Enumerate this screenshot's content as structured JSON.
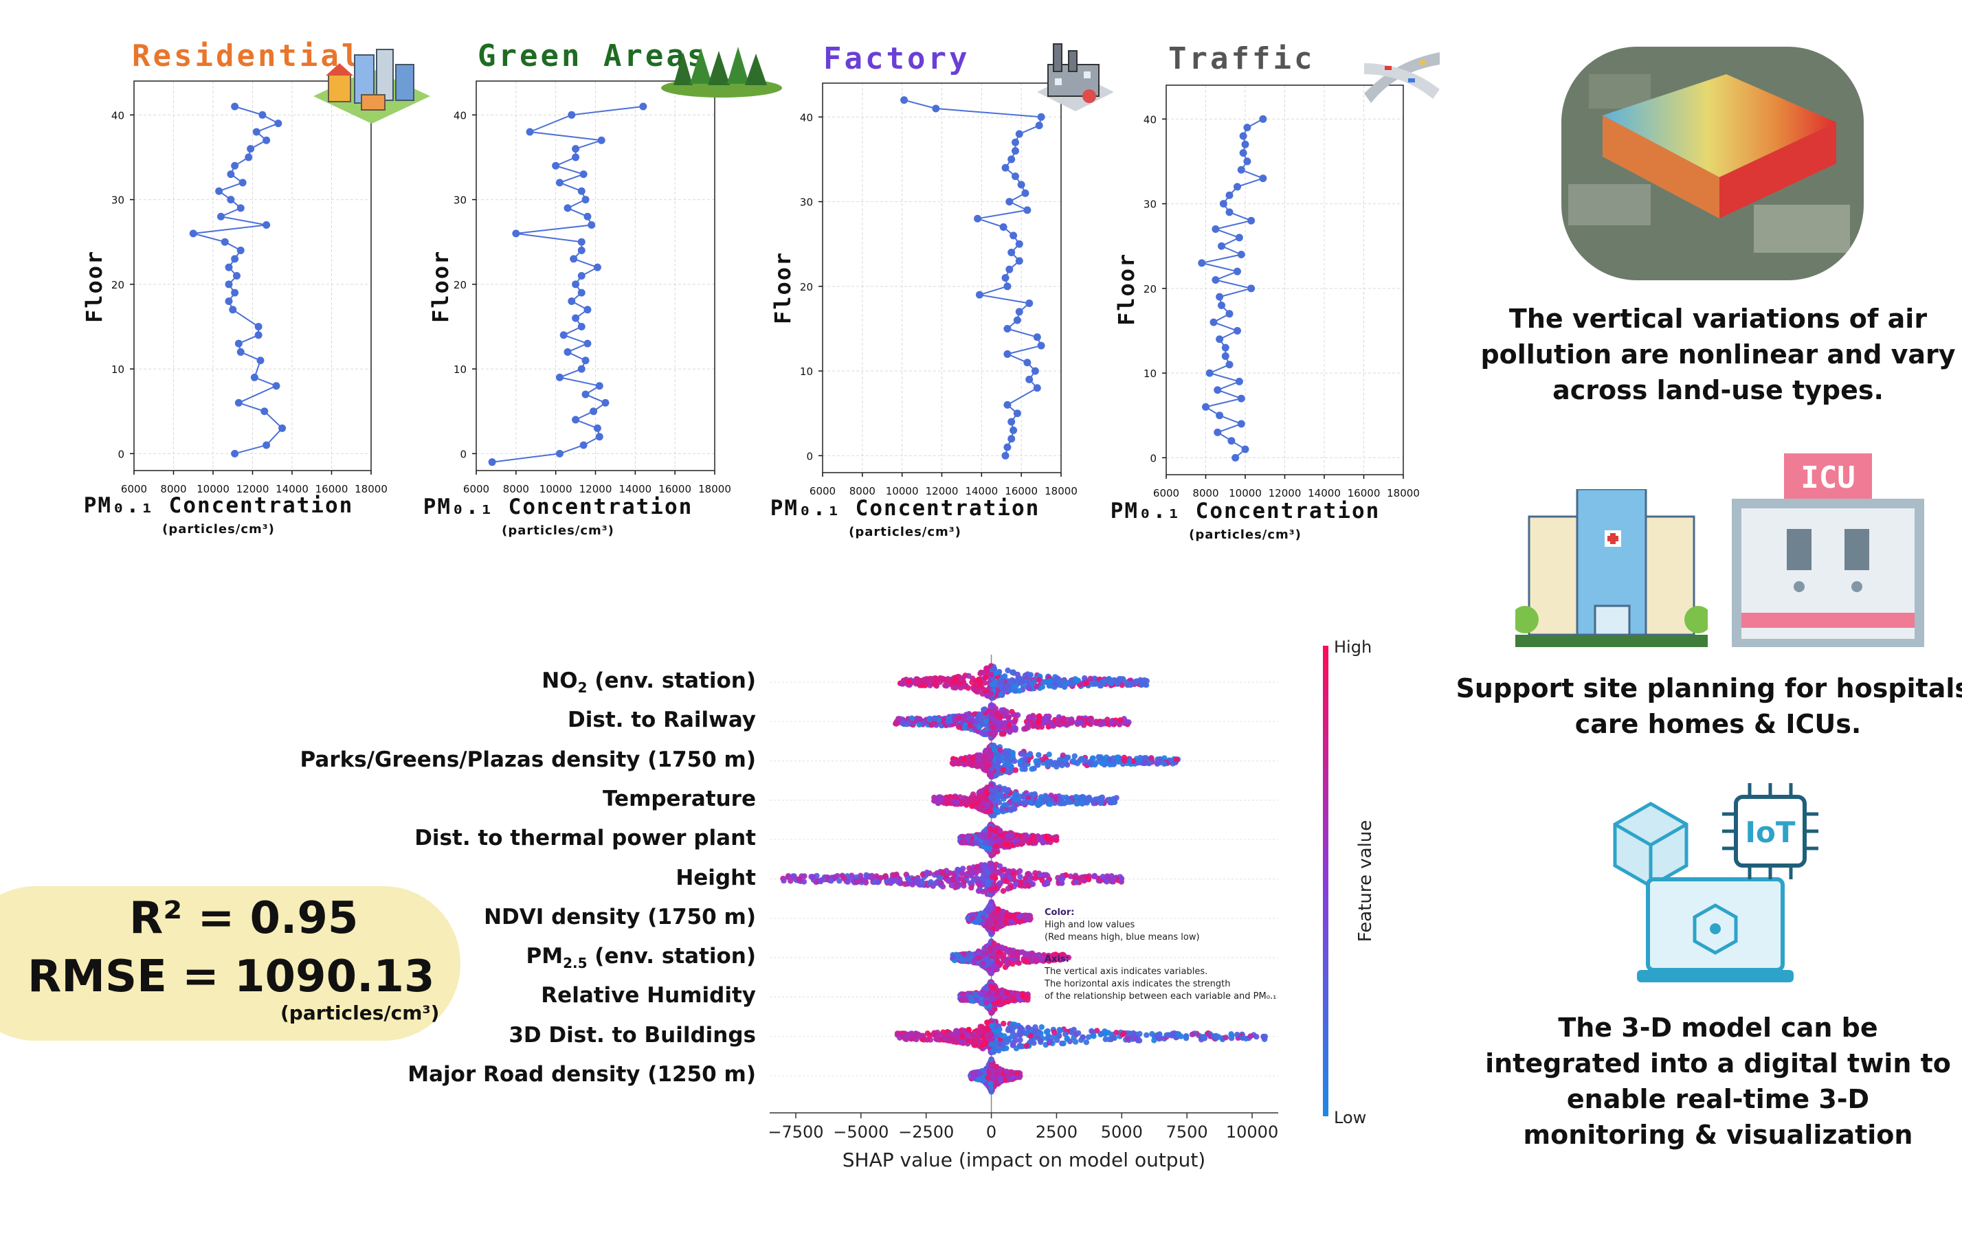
{
  "chart_data": [
    {
      "type": "line",
      "title": "Residential",
      "xlabel": "PM₀.₁ Concentration",
      "xlabel_unit": "(particles/cm³)",
      "ylabel": "Floor",
      "xlim": [
        6000,
        18000
      ],
      "ylim": [
        -2,
        44
      ],
      "xticks": [
        "6000",
        "8000",
        "10000",
        "12000",
        "14000",
        "16000",
        "18000"
      ],
      "yticks": [
        "0",
        "10",
        "20",
        "30",
        "40"
      ],
      "color": "#4a6fd8",
      "points": [
        [
          11100,
          0
        ],
        [
          12700,
          1
        ],
        [
          13500,
          3
        ],
        [
          12600,
          5
        ],
        [
          11300,
          6
        ],
        [
          13200,
          8
        ],
        [
          12100,
          9
        ],
        [
          12400,
          11
        ],
        [
          11400,
          12
        ],
        [
          11300,
          13
        ],
        [
          12300,
          14
        ],
        [
          12300,
          15
        ],
        [
          11000,
          17
        ],
        [
          10800,
          18
        ],
        [
          11100,
          19
        ],
        [
          10800,
          20
        ],
        [
          11200,
          21
        ],
        [
          10800,
          22
        ],
        [
          11100,
          23
        ],
        [
          11400,
          24
        ],
        [
          10600,
          25
        ],
        [
          9000,
          26
        ],
        [
          12700,
          27
        ],
        [
          10400,
          28
        ],
        [
          11400,
          29
        ],
        [
          10900,
          30
        ],
        [
          10300,
          31
        ],
        [
          11500,
          32
        ],
        [
          10900,
          33
        ],
        [
          11100,
          34
        ],
        [
          11800,
          35
        ],
        [
          11900,
          36
        ],
        [
          12700,
          37
        ],
        [
          12200,
          38
        ],
        [
          13300,
          39
        ],
        [
          12500,
          40
        ],
        [
          11100,
          41
        ]
      ]
    },
    {
      "type": "line",
      "title": "Green Areas",
      "xlabel": "PM₀.₁ Concentration",
      "xlabel_unit": "(particles/cm³)",
      "ylabel": "Floor",
      "xlim": [
        6000,
        18000
      ],
      "ylim": [
        -2,
        44
      ],
      "xticks": [
        "6000",
        "8000",
        "10000",
        "12000",
        "14000",
        "16000",
        "18000"
      ],
      "yticks": [
        "0",
        "10",
        "20",
        "30",
        "40"
      ],
      "color": "#4a6fd8",
      "points": [
        [
          6800,
          -1
        ],
        [
          10200,
          0
        ],
        [
          11400,
          1
        ],
        [
          12200,
          2
        ],
        [
          12100,
          3
        ],
        [
          11000,
          4
        ],
        [
          11900,
          5
        ],
        [
          12500,
          6
        ],
        [
          11500,
          7
        ],
        [
          12200,
          8
        ],
        [
          10200,
          9
        ],
        [
          11300,
          10
        ],
        [
          11500,
          11
        ],
        [
          10600,
          12
        ],
        [
          11600,
          13
        ],
        [
          10400,
          14
        ],
        [
          11300,
          15
        ],
        [
          11000,
          16
        ],
        [
          11600,
          17
        ],
        [
          10800,
          18
        ],
        [
          11300,
          19
        ],
        [
          11000,
          20
        ],
        [
          11300,
          21
        ],
        [
          12100,
          22
        ],
        [
          10900,
          23
        ],
        [
          11300,
          24
        ],
        [
          11300,
          25
        ],
        [
          8000,
          26
        ],
        [
          11800,
          27
        ],
        [
          11600,
          28
        ],
        [
          10600,
          29
        ],
        [
          11500,
          30
        ],
        [
          11300,
          31
        ],
        [
          10200,
          32
        ],
        [
          11400,
          33
        ],
        [
          10000,
          34
        ],
        [
          11000,
          35
        ],
        [
          11000,
          36
        ],
        [
          12300,
          37
        ],
        [
          8700,
          38
        ],
        [
          10800,
          40
        ],
        [
          14400,
          41
        ]
      ]
    },
    {
      "type": "line",
      "title": "Factory",
      "xlabel": "PM₀.₁ Concentration",
      "xlabel_unit": "(particles/cm³)",
      "ylabel": "Floor",
      "xlim": [
        6000,
        18000
      ],
      "ylim": [
        -2,
        44
      ],
      "xticks": [
        "6000",
        "8000",
        "10000",
        "12000",
        "14000",
        "16000",
        "18000"
      ],
      "yticks": [
        "0",
        "10",
        "20",
        "30",
        "40"
      ],
      "color": "#4a6fd8",
      "points": [
        [
          15200,
          0
        ],
        [
          15300,
          1
        ],
        [
          15500,
          2
        ],
        [
          15600,
          3
        ],
        [
          15500,
          4
        ],
        [
          15800,
          5
        ],
        [
          15300,
          6
        ],
        [
          16800,
          8
        ],
        [
          16400,
          9
        ],
        [
          16700,
          10
        ],
        [
          16300,
          11
        ],
        [
          15300,
          12
        ],
        [
          17000,
          13
        ],
        [
          16800,
          14
        ],
        [
          15300,
          15
        ],
        [
          15800,
          16
        ],
        [
          15900,
          17
        ],
        [
          16400,
          18
        ],
        [
          13900,
          19
        ],
        [
          15300,
          20
        ],
        [
          15200,
          21
        ],
        [
          15400,
          22
        ],
        [
          15900,
          23
        ],
        [
          15500,
          24
        ],
        [
          15900,
          25
        ],
        [
          15600,
          26
        ],
        [
          15100,
          27
        ],
        [
          13800,
          28
        ],
        [
          16300,
          29
        ],
        [
          15400,
          30
        ],
        [
          16200,
          31
        ],
        [
          16000,
          32
        ],
        [
          15700,
          33
        ],
        [
          15200,
          34
        ],
        [
          15500,
          35
        ],
        [
          15700,
          36
        ],
        [
          15700,
          37
        ],
        [
          15900,
          38
        ],
        [
          16900,
          39
        ],
        [
          17000,
          40
        ],
        [
          11700,
          41
        ],
        [
          10100,
          42
        ]
      ]
    },
    {
      "type": "line",
      "title": "Traffic",
      "xlabel": "PM₀.₁ Concentration",
      "xlabel_unit": "(particles/cm³)",
      "ylabel": "Floor",
      "xlim": [
        6000,
        18000
      ],
      "ylim": [
        -2,
        44
      ],
      "xticks": [
        "6000",
        "8000",
        "10000",
        "12000",
        "14000",
        "16000",
        "18000"
      ],
      "yticks": [
        "0",
        "10",
        "20",
        "30",
        "40"
      ],
      "color": "#4a6fd8",
      "points": [
        [
          9500,
          0
        ],
        [
          10000,
          1
        ],
        [
          9300,
          2
        ],
        [
          8600,
          3
        ],
        [
          9800,
          4
        ],
        [
          8700,
          5
        ],
        [
          8000,
          6
        ],
        [
          9800,
          7
        ],
        [
          8600,
          8
        ],
        [
          9700,
          9
        ],
        [
          8200,
          10
        ],
        [
          9200,
          11
        ],
        [
          9000,
          12
        ],
        [
          9000,
          13
        ],
        [
          8700,
          14
        ],
        [
          9600,
          15
        ],
        [
          8400,
          16
        ],
        [
          9200,
          17
        ],
        [
          8800,
          18
        ],
        [
          8700,
          19
        ],
        [
          10300,
          20
        ],
        [
          8500,
          21
        ],
        [
          9600,
          22
        ],
        [
          7800,
          23
        ],
        [
          9800,
          24
        ],
        [
          8800,
          25
        ],
        [
          9700,
          26
        ],
        [
          8500,
          27
        ],
        [
          10300,
          28
        ],
        [
          9200,
          29
        ],
        [
          8900,
          30
        ],
        [
          9200,
          31
        ],
        [
          9600,
          32
        ],
        [
          10900,
          33
        ],
        [
          9800,
          34
        ],
        [
          10100,
          35
        ],
        [
          9900,
          36
        ],
        [
          10000,
          37
        ],
        [
          9900,
          38
        ],
        [
          10100,
          39
        ],
        [
          10900,
          40
        ]
      ]
    },
    {
      "type": "scatter",
      "subtype": "shap-beeswarm",
      "xlabel": "SHAP value (impact on model output)",
      "xlim": [
        -8500,
        11000
      ],
      "xticks": [
        "−7500",
        "−5000",
        "−2500",
        "0",
        "2500",
        "5000",
        "7500",
        "10000"
      ],
      "colorbar_label": "Feature value",
      "colorbar_high": "High",
      "colorbar_low": "Low",
      "color_high": "#ff0b57",
      "color_low": "#1e88e5",
      "features": [
        {
          "label": "NO",
          "sub": "2",
          "suffix": " (env. station)",
          "neg": -3500,
          "pos": 6000,
          "skew": "pos"
        },
        {
          "label": "Dist. to Railway",
          "neg": -3700,
          "pos": 5300,
          "skew": "mix"
        },
        {
          "label": "Parks/Greens/Plazas density (1750 m)",
          "neg": -1500,
          "pos": 7200,
          "skew": "pos"
        },
        {
          "label": "Temperature",
          "neg": -2200,
          "pos": 4800,
          "skew": "pos"
        },
        {
          "label": "Dist. to thermal power plant",
          "neg": -1200,
          "pos": 2500,
          "skew": "mix"
        },
        {
          "label": "Height",
          "neg": -8000,
          "pos": 5000,
          "skew": "neg"
        },
        {
          "label": "NDVI density (1750 m)",
          "neg": -900,
          "pos": 1500,
          "skew": "mix"
        },
        {
          "label": "PM",
          "sub": "2.5",
          "suffix": " (env. station)",
          "neg": -1500,
          "pos": 3000,
          "skew": "mix"
        },
        {
          "label": "Relative Humidity",
          "neg": -1200,
          "pos": 1400,
          "skew": "mix"
        },
        {
          "label": "3D Dist. to Buildings",
          "neg": -3700,
          "pos": 10500,
          "skew": "pos"
        },
        {
          "label": "Major Road density (1250 m)",
          "neg": -800,
          "pos": 1100,
          "skew": "mix"
        }
      ]
    }
  ],
  "metrics": {
    "r2": "R² = 0.95",
    "rmse": "RMSE = 1090.13",
    "unit": "(particles/cm³)"
  },
  "notes": {
    "color_title": "Color:",
    "color_line1": "High and low values",
    "color_line2": "(Red means high, blue means low)",
    "axis_title": "Axis:",
    "axis_line1": "The vertical axis indicates variables.",
    "axis_line2": "The horizontal axis indicates the strength",
    "axis_line3": "of the relationship between each variable and PM₀.₁"
  },
  "captions": {
    "c1_l1": "The vertical variations of air",
    "c1_l2": "pollution are nonlinear and vary",
    "c1_l3": "across land-use types.",
    "c2_l1": "Support site planning for hospitals,",
    "c2_l2": "care homes & ICUs.",
    "c3_l1": "The 3-D model can be",
    "c3_l2": "integrated into a digital twin to",
    "c3_l3": "enable real-time 3-D",
    "c3_l4": "monitoring & visualization",
    "icu_sign": "ICU",
    "iot_chip": "IoT"
  },
  "colors": {
    "residential": "#e8762c",
    "green": "#1f6b22",
    "factory": "#6a3fd6",
    "traffic": "#555555",
    "line": "#4a6fd8",
    "metric_bg": "#f6edb8"
  },
  "icons": [
    "city-buildings-icon",
    "forest-icon",
    "factory-icon",
    "highway-icon",
    "pollution-3d-map-icon",
    "hospital-icon",
    "icu-building-icon",
    "iot-digital-twin-icon"
  ]
}
